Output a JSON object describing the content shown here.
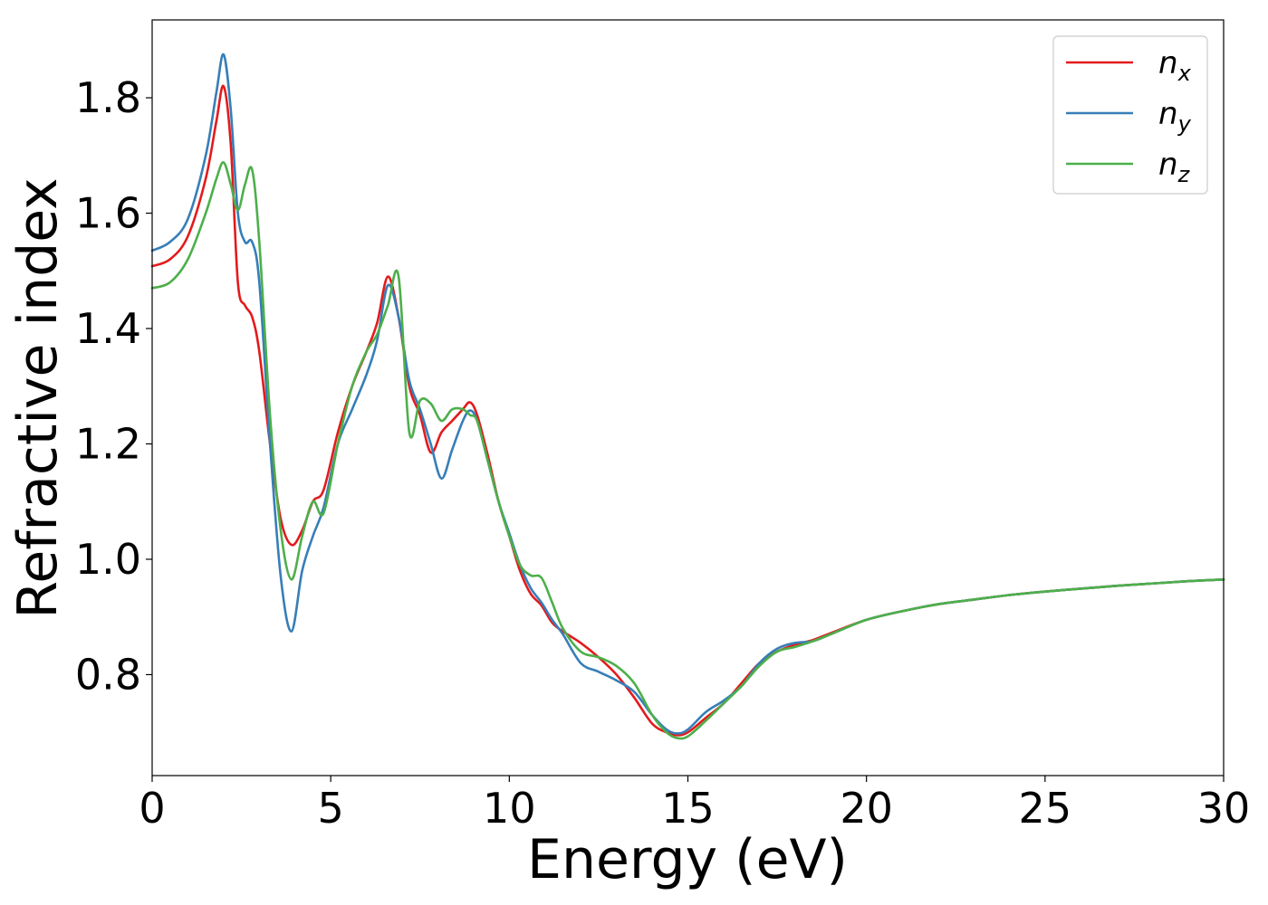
{
  "chart_data": {
    "type": "line",
    "title": "",
    "xlabel": "Energy (eV)",
    "ylabel": "Refractive index",
    "xlim": [
      0,
      30
    ],
    "ylim": [
      0.625,
      1.935
    ],
    "xticks": [
      0,
      5,
      10,
      15,
      20,
      25,
      30
    ],
    "xtick_labels": [
      "0",
      "5",
      "10",
      "15",
      "20",
      "25",
      "30"
    ],
    "yticks": [
      0.8,
      1.0,
      1.2,
      1.4,
      1.6,
      1.8
    ],
    "ytick_labels": [
      "0.8",
      "1.0",
      "1.2",
      "1.4",
      "1.6",
      "1.8"
    ],
    "grid": false,
    "legend_position": "top-right",
    "series": [
      {
        "name": "n_x",
        "name_base": "n",
        "name_sub": "x",
        "color": "#e41a1c",
        "x": [
          0,
          0.5,
          1.0,
          1.5,
          1.8,
          2.0,
          2.2,
          2.4,
          2.6,
          2.8,
          3.0,
          3.3,
          3.6,
          3.9,
          4.2,
          4.5,
          4.8,
          5.2,
          5.6,
          6.0,
          6.3,
          6.6,
          6.9,
          7.2,
          7.5,
          7.8,
          8.1,
          8.4,
          8.7,
          8.9,
          9.1,
          9.4,
          9.7,
          10.0,
          10.3,
          10.6,
          10.9,
          11.2,
          11.5,
          12.0,
          12.5,
          13.0,
          13.5,
          14.0,
          14.4,
          14.7,
          15.0,
          15.5,
          16.0,
          16.5,
          17.0,
          17.5,
          18.0,
          18.5,
          19.0,
          20.0,
          21.0,
          22.0,
          23.0,
          24.0,
          25.0,
          26.0,
          27.0,
          28.0,
          29.0,
          30.0
        ],
        "y": [
          1.508,
          1.52,
          1.56,
          1.66,
          1.76,
          1.82,
          1.72,
          1.48,
          1.44,
          1.42,
          1.36,
          1.2,
          1.07,
          1.025,
          1.05,
          1.1,
          1.12,
          1.22,
          1.3,
          1.36,
          1.41,
          1.49,
          1.42,
          1.3,
          1.25,
          1.185,
          1.22,
          1.24,
          1.26,
          1.272,
          1.25,
          1.18,
          1.1,
          1.04,
          0.98,
          0.94,
          0.92,
          0.89,
          0.875,
          0.855,
          0.83,
          0.8,
          0.76,
          0.715,
          0.7,
          0.695,
          0.7,
          0.725,
          0.75,
          0.785,
          0.82,
          0.84,
          0.852,
          0.86,
          0.872,
          0.895,
          0.91,
          0.922,
          0.93,
          0.938,
          0.944,
          0.949,
          0.954,
          0.958,
          0.962,
          0.965
        ]
      },
      {
        "name": "n_y",
        "name_base": "n",
        "name_sub": "y",
        "color": "#377eb8",
        "x": [
          0,
          0.5,
          1.0,
          1.5,
          1.8,
          2.0,
          2.2,
          2.4,
          2.6,
          2.8,
          3.0,
          3.3,
          3.6,
          3.9,
          4.2,
          4.5,
          4.8,
          5.2,
          5.6,
          6.0,
          6.3,
          6.6,
          6.9,
          7.2,
          7.5,
          7.8,
          8.1,
          8.4,
          8.7,
          8.9,
          9.1,
          9.4,
          9.7,
          10.0,
          10.3,
          10.6,
          10.9,
          11.2,
          11.5,
          12.0,
          12.5,
          13.0,
          13.5,
          14.0,
          14.4,
          14.7,
          15.0,
          15.5,
          16.0,
          16.5,
          17.0,
          17.5,
          18.0,
          18.5,
          19.0,
          20.0,
          21.0,
          22.0,
          23.0,
          24.0,
          25.0,
          26.0,
          27.0,
          28.0,
          29.0,
          30.0
        ],
        "y": [
          1.535,
          1.55,
          1.59,
          1.7,
          1.81,
          1.875,
          1.78,
          1.6,
          1.55,
          1.55,
          1.48,
          1.2,
          0.97,
          0.875,
          0.98,
          1.04,
          1.09,
          1.2,
          1.26,
          1.32,
          1.38,
          1.475,
          1.42,
          1.31,
          1.26,
          1.2,
          1.14,
          1.19,
          1.24,
          1.258,
          1.24,
          1.17,
          1.1,
          1.045,
          0.99,
          0.95,
          0.925,
          0.895,
          0.87,
          0.82,
          0.805,
          0.79,
          0.77,
          0.73,
          0.705,
          0.698,
          0.705,
          0.735,
          0.755,
          0.78,
          0.82,
          0.845,
          0.855,
          0.858,
          0.87,
          0.895,
          0.91,
          0.922,
          0.93,
          0.938,
          0.944,
          0.949,
          0.954,
          0.958,
          0.962,
          0.965
        ]
      },
      {
        "name": "n_z",
        "name_base": "n",
        "name_sub": "z",
        "color": "#4daf4a",
        "x": [
          0,
          0.5,
          1.0,
          1.5,
          1.8,
          2.0,
          2.2,
          2.4,
          2.6,
          2.8,
          3.0,
          3.3,
          3.6,
          3.9,
          4.2,
          4.5,
          4.8,
          5.2,
          5.6,
          6.0,
          6.3,
          6.6,
          6.9,
          7.2,
          7.5,
          7.8,
          8.1,
          8.4,
          8.7,
          8.9,
          9.1,
          9.4,
          9.7,
          10.0,
          10.3,
          10.6,
          10.9,
          11.2,
          11.5,
          12.0,
          12.5,
          13.0,
          13.5,
          14.0,
          14.4,
          14.7,
          15.0,
          15.5,
          16.0,
          16.5,
          17.0,
          17.5,
          18.0,
          18.5,
          19.0,
          20.0,
          21.0,
          22.0,
          23.0,
          24.0,
          25.0,
          26.0,
          27.0,
          28.0,
          29.0,
          30.0
        ],
        "y": [
          1.47,
          1.48,
          1.52,
          1.6,
          1.66,
          1.688,
          1.65,
          1.605,
          1.65,
          1.675,
          1.55,
          1.25,
          1.05,
          0.965,
          1.04,
          1.1,
          1.08,
          1.2,
          1.3,
          1.36,
          1.39,
          1.44,
          1.49,
          1.22,
          1.275,
          1.27,
          1.24,
          1.26,
          1.26,
          1.25,
          1.24,
          1.17,
          1.1,
          1.04,
          0.99,
          0.972,
          0.968,
          0.925,
          0.88,
          0.84,
          0.83,
          0.815,
          0.785,
          0.73,
          0.7,
          0.69,
          0.693,
          0.72,
          0.75,
          0.78,
          0.815,
          0.84,
          0.848,
          0.858,
          0.87,
          0.895,
          0.91,
          0.922,
          0.93,
          0.938,
          0.944,
          0.949,
          0.954,
          0.958,
          0.962,
          0.965
        ]
      }
    ]
  }
}
